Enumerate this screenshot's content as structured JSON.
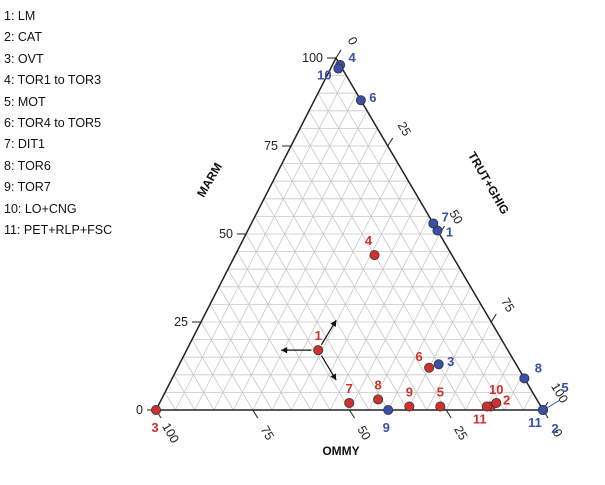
{
  "chart_data": {
    "type": "scatter",
    "subtype": "ternary",
    "axes": {
      "left": {
        "label": "MARM",
        "ticks": [
          "0",
          "25",
          "50",
          "75",
          "100"
        ]
      },
      "right": {
        "label": "TRUT+GHIG",
        "ticks": [
          "0",
          "25",
          "50",
          "75",
          "100"
        ]
      },
      "bottom": {
        "label": "OMMY",
        "ticks": [
          "100",
          "75",
          "50",
          "25",
          "0"
        ]
      }
    },
    "grid": true,
    "grid_color": "#c8c8c8",
    "legend": {
      "placement": "top-left",
      "items": [
        "1: LM",
        "2: CAT",
        "3: OVT",
        "4: TOR1 to TOR3",
        "5: MOT",
        "6: TOR4 to TOR5",
        "7: DIT1",
        "8: TOR6",
        "9: TOR7",
        "10: LO+CNG",
        "11: PET+RLP+FSC"
      ]
    },
    "series": [
      {
        "color": "#d0312d",
        "points": [
          {
            "label": "1",
            "MARM": 17,
            "TRUT+GHIG": 34,
            "OMMY": 49
          },
          {
            "label": "2",
            "MARM": 1,
            "TRUT+GHIG": 86,
            "OMMY": 13
          },
          {
            "label": "3",
            "MARM": 0,
            "TRUT+GHIG": 0,
            "OMMY": 100
          },
          {
            "label": "4",
            "MARM": 44,
            "TRUT+GHIG": 36,
            "OMMY": 20
          },
          {
            "label": "5",
            "MARM": 1,
            "TRUT+GHIG": 73,
            "OMMY": 26
          },
          {
            "label": "6",
            "MARM": 12,
            "TRUT+GHIG": 65,
            "OMMY": 23
          },
          {
            "label": "7",
            "MARM": 2,
            "TRUT+GHIG": 49,
            "OMMY": 49
          },
          {
            "label": "8",
            "MARM": 3,
            "TRUT+GHIG": 56,
            "OMMY": 41
          },
          {
            "label": "9",
            "MARM": 1,
            "TRUT+GHIG": 65,
            "OMMY": 34
          },
          {
            "label": "10",
            "MARM": 2,
            "TRUT+GHIG": 87,
            "OMMY": 11
          },
          {
            "label": "11",
            "MARM": 1,
            "TRUT+GHIG": 85,
            "OMMY": 14
          }
        ]
      },
      {
        "color": "#3a4fa8",
        "points": [
          {
            "label": "1",
            "MARM": 51,
            "TRUT+GHIG": 49,
            "OMMY": 0
          },
          {
            "label": "2",
            "MARM": 0,
            "TRUT+GHIG": 100,
            "OMMY": 0
          },
          {
            "label": "3",
            "MARM": 13,
            "TRUT+GHIG": 67,
            "OMMY": 20
          },
          {
            "label": "4",
            "MARM": 98,
            "TRUT+GHIG": 2,
            "OMMY": 0
          },
          {
            "label": "5",
            "MARM": 0,
            "TRUT+GHIG": 100,
            "OMMY": 0
          },
          {
            "label": "6",
            "MARM": 88,
            "TRUT+GHIG": 12,
            "OMMY": 0
          },
          {
            "label": "7",
            "MARM": 53,
            "TRUT+GHIG": 47,
            "OMMY": 0
          },
          {
            "label": "8",
            "MARM": 9,
            "TRUT+GHIG": 91,
            "OMMY": 0
          },
          {
            "label": "9",
            "MARM": 0,
            "TRUT+GHIG": 60,
            "OMMY": 40
          },
          {
            "label": "10",
            "MARM": 97,
            "TRUT+GHIG": 2,
            "OMMY": 1
          },
          {
            "label": "11",
            "MARM": 0,
            "TRUT+GHIG": 100,
            "OMMY": 0
          }
        ]
      }
    ]
  }
}
